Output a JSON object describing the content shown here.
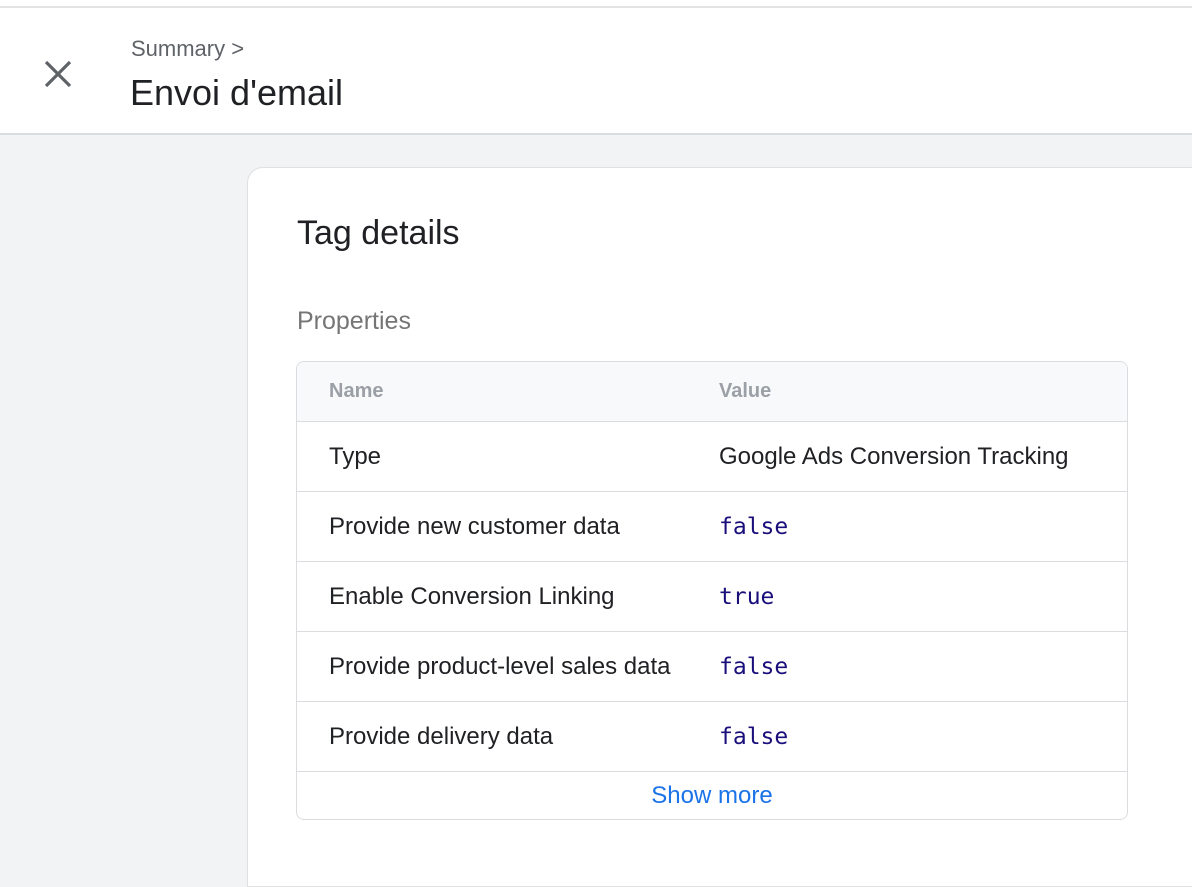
{
  "header": {
    "breadcrumb": "Summary >",
    "title": "Envoi d'email",
    "close_icon": "close-icon"
  },
  "card": {
    "title": "Tag details",
    "section": "Properties",
    "table": {
      "columns": [
        "Name",
        "Value"
      ],
      "rows": [
        {
          "name": "Type",
          "value": "Google Ads Conversion Tracking"
        },
        {
          "name": "Provide new customer data",
          "value": "false"
        },
        {
          "name": "Enable Conversion Linking",
          "value": "true"
        },
        {
          "name": "Provide product-level sales data",
          "value": "false"
        },
        {
          "name": "Provide delivery data",
          "value": "false"
        }
      ],
      "show_more": "Show more"
    }
  },
  "colors": {
    "link": "#1a73e8",
    "code_value": "#1a0f7a",
    "background": "#f1f3f4"
  }
}
